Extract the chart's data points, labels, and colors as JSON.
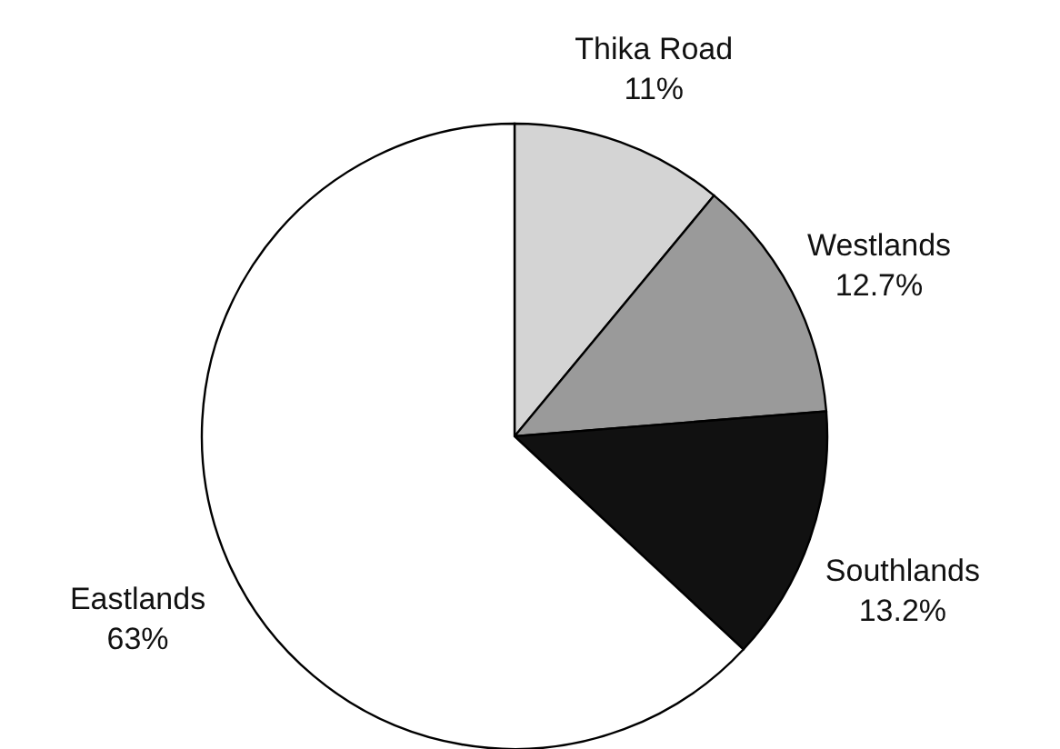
{
  "chart_data": {
    "type": "pie",
    "categories": [
      "Thika Road",
      "Westlands",
      "Southlands",
      "Eastlands"
    ],
    "values": [
      11,
      12.7,
      13.2,
      63
    ],
    "value_labels": [
      "11%",
      "12.7%",
      "13.2%",
      "63%"
    ],
    "colors": [
      "#d4d4d4",
      "#9a9a9a",
      "#111111",
      "#ffffff"
    ]
  }
}
